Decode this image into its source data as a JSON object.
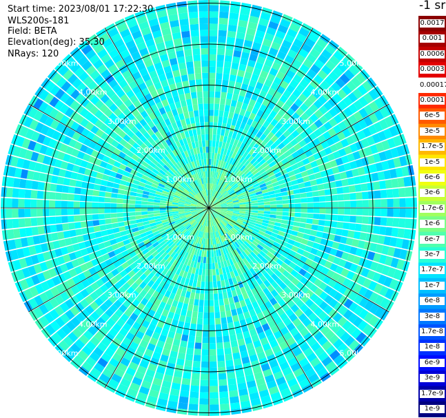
{
  "header": {
    "start_time": "Start time: 2023/08/01 17:22:30",
    "instrument": "WLS200s-181",
    "field": "Field: BETA",
    "elevation": "Elevation(deg): 35.30",
    "nrays": "NRays: 120"
  },
  "colorbar": {
    "title": "-1 sr",
    "labels": [
      "0.0017",
      "0.001",
      "0.0006",
      "0.0003",
      "0.00017",
      "0.0001",
      "6e-5",
      "3e-5",
      "1.7e-5",
      "1e-5",
      "6e-6",
      "3e-6",
      "1.7e-6",
      "1e-6",
      "6e-7",
      "3e-7",
      "1.7e-7",
      "1e-7",
      "6e-8",
      "3e-8",
      "1.7e-8",
      "1e-8",
      "6e-9",
      "3e-9",
      "1.7e-9",
      "1e-9"
    ],
    "colors": [
      "#8b0000",
      "#a50000",
      "#c40000",
      "#e30000",
      "#ffffff",
      "#ff2a00",
      "#ff5a00",
      "#ff8a00",
      "#ffb800",
      "#ffe600",
      "#f0ff10",
      "#c8ff36",
      "#a0ff5e",
      "#78ff86",
      "#50ffae",
      "#28ffd6",
      "#00e4ff",
      "#00c0ff",
      "#009cff",
      "#0078ff",
      "#0054ff",
      "#0030ff",
      "#000cff",
      "#0000d8",
      "#0000a8",
      "#000080"
    ]
  },
  "chart_data": {
    "type": "ppi",
    "field": "BETA",
    "units": "-1 sr",
    "nrays": 120,
    "elevation_deg": 35.3,
    "range_rings_km": [
      1,
      2,
      3,
      4,
      5
    ],
    "range_labels": [
      "1.00km",
      "2.00km",
      "3.00km",
      "4.00km",
      "5.00km"
    ],
    "color_scale": "log",
    "color_range": [
      1e-09,
      0.0017
    ],
    "values_summary": {
      "near_range_beta": 3e-07,
      "mid_range_beta": 1e-07,
      "far_range_beta": 5e-08
    }
  }
}
